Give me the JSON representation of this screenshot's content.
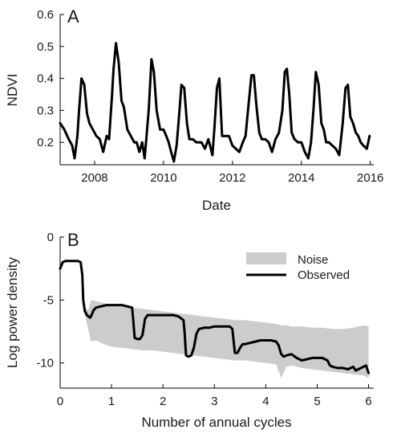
{
  "chart_data": [
    {
      "panel": "A",
      "type": "line",
      "xlabel": "Date",
      "ylabel": "NDVI",
      "xlim": [
        2007.0,
        2016.1
      ],
      "ylim": [
        0.13,
        0.6
      ],
      "xticks": [
        2008,
        2010,
        2012,
        2014,
        2016
      ],
      "yticks": [
        0.2,
        0.3,
        0.4,
        0.5,
        0.6
      ],
      "ytick_labels": [
        "0.2",
        "0.3",
        "0.4",
        "0.5",
        "0.6"
      ],
      "series": [
        {
          "color": "#000000",
          "x": [
            2007.0,
            2007.12,
            2007.25,
            2007.35,
            2007.42,
            2007.5,
            2007.55,
            2007.62,
            2007.7,
            2007.78,
            2007.85,
            2007.95,
            2008.05,
            2008.15,
            2008.25,
            2008.35,
            2008.42,
            2008.5,
            2008.55,
            2008.62,
            2008.7,
            2008.78,
            2008.85,
            2008.95,
            2009.05,
            2009.15,
            2009.22,
            2009.3,
            2009.38,
            2009.45,
            2009.5,
            2009.57,
            2009.65,
            2009.72,
            2009.8,
            2009.9,
            2010.0,
            2010.08,
            2010.15,
            2010.22,
            2010.3,
            2010.38,
            2010.45,
            2010.52,
            2010.6,
            2010.68,
            2010.75,
            2010.85,
            2010.95,
            2011.1,
            2011.2,
            2011.3,
            2011.35,
            2011.42,
            2011.48,
            2011.55,
            2011.62,
            2011.7,
            2011.78,
            2011.9,
            2012.0,
            2012.1,
            2012.2,
            2012.3,
            2012.38,
            2012.45,
            2012.55,
            2012.62,
            2012.7,
            2012.78,
            2012.85,
            2012.95,
            2013.05,
            2013.15,
            2013.25,
            2013.35,
            2013.45,
            2013.52,
            2013.58,
            2013.65,
            2013.72,
            2013.8,
            2013.9,
            2014.0,
            2014.1,
            2014.2,
            2014.28,
            2014.35,
            2014.42,
            2014.5,
            2014.58,
            2014.65,
            2014.72,
            2014.8,
            2014.9,
            2015.0,
            2015.1,
            2015.2,
            2015.28,
            2015.35,
            2015.42,
            2015.5,
            2015.58,
            2015.65,
            2015.72,
            2015.8,
            2015.9,
            2015.98
          ],
          "y": [
            0.26,
            0.24,
            0.21,
            0.19,
            0.15,
            0.22,
            0.3,
            0.4,
            0.38,
            0.29,
            0.26,
            0.24,
            0.22,
            0.21,
            0.17,
            0.22,
            0.21,
            0.34,
            0.43,
            0.51,
            0.45,
            0.33,
            0.31,
            0.24,
            0.22,
            0.2,
            0.2,
            0.17,
            0.2,
            0.15,
            0.21,
            0.3,
            0.46,
            0.42,
            0.3,
            0.24,
            0.24,
            0.22,
            0.2,
            0.17,
            0.14,
            0.19,
            0.28,
            0.38,
            0.37,
            0.26,
            0.21,
            0.21,
            0.2,
            0.2,
            0.18,
            0.21,
            0.19,
            0.16,
            0.25,
            0.37,
            0.4,
            0.22,
            0.22,
            0.22,
            0.19,
            0.18,
            0.17,
            0.2,
            0.22,
            0.3,
            0.41,
            0.41,
            0.31,
            0.23,
            0.21,
            0.21,
            0.2,
            0.17,
            0.21,
            0.23,
            0.3,
            0.42,
            0.43,
            0.35,
            0.23,
            0.21,
            0.2,
            0.2,
            0.17,
            0.15,
            0.2,
            0.3,
            0.42,
            0.38,
            0.26,
            0.24,
            0.2,
            0.2,
            0.19,
            0.18,
            0.16,
            0.26,
            0.37,
            0.38,
            0.28,
            0.26,
            0.23,
            0.22,
            0.2,
            0.19,
            0.18,
            0.22
          ]
        }
      ]
    },
    {
      "panel": "B",
      "type": "line",
      "xlabel": "Number of annual cycles",
      "ylabel": "Log power density",
      "xlim": [
        0,
        6.1
      ],
      "ylim": [
        -12,
        0
      ],
      "xticks": [
        0,
        1,
        2,
        3,
        4,
        5,
        6
      ],
      "yticks": [
        0,
        -5,
        -10
      ],
      "ytick_labels": [
        "0",
        "-5",
        "-10"
      ],
      "legend": {
        "placement": "top-right",
        "entries": [
          "Noise",
          "Observed"
        ]
      },
      "noise_band": {
        "name": "Noise",
        "color": "#cccccc",
        "x": [
          0.45,
          0.5,
          0.55,
          0.6,
          0.7,
          0.8,
          0.9,
          1.0,
          1.2,
          1.4,
          1.6,
          1.8,
          2.0,
          2.2,
          2.4,
          2.6,
          2.8,
          3.0,
          3.2,
          3.4,
          3.6,
          3.8,
          4.0,
          4.2,
          4.3,
          4.4,
          4.5,
          4.7,
          4.9,
          5.1,
          5.3,
          5.5,
          5.7,
          5.9,
          6.0
        ],
        "upper": [
          -5.6,
          -5.7,
          -5.8,
          -5.0,
          -5.1,
          -5.2,
          -5.3,
          -5.4,
          -5.5,
          -5.6,
          -5.7,
          -5.8,
          -5.9,
          -6.0,
          -6.1,
          -6.2,
          -6.3,
          -6.4,
          -6.5,
          -6.6,
          -6.6,
          -6.7,
          -6.8,
          -6.9,
          -7.0,
          -7.0,
          -7.1,
          -7.1,
          -7.2,
          -7.2,
          -7.3,
          -7.3,
          -7.2,
          -7.0,
          -7.1
        ],
        "lower": [
          -5.8,
          -6.5,
          -7.4,
          -8.3,
          -8.2,
          -8.4,
          -8.6,
          -8.7,
          -8.8,
          -8.9,
          -9.0,
          -9.0,
          -9.1,
          -9.2,
          -9.3,
          -9.4,
          -9.5,
          -9.6,
          -9.7,
          -9.8,
          -9.8,
          -9.9,
          -10.0,
          -10.1,
          -11.2,
          -10.3,
          -10.2,
          -10.4,
          -10.5,
          -10.6,
          -10.7,
          -10.8,
          -10.9,
          -11.0,
          -11.2
        ]
      },
      "series": [
        {
          "name": "Observed",
          "color": "#000000",
          "x": [
            0,
            0.05,
            0.1,
            0.2,
            0.3,
            0.35,
            0.4,
            0.43,
            0.45,
            0.48,
            0.5,
            0.52,
            0.55,
            0.58,
            0.6,
            0.65,
            0.7,
            0.8,
            0.9,
            1.0,
            1.1,
            1.2,
            1.3,
            1.4,
            1.42,
            1.45,
            1.5,
            1.55,
            1.6,
            1.65,
            1.7,
            1.8,
            1.9,
            2.0,
            2.1,
            2.2,
            2.3,
            2.4,
            2.42,
            2.45,
            2.5,
            2.55,
            2.6,
            2.65,
            2.7,
            2.8,
            2.9,
            3.0,
            3.1,
            3.2,
            3.3,
            3.35,
            3.38,
            3.4,
            3.45,
            3.5,
            3.55,
            3.6,
            3.7,
            3.8,
            3.9,
            4.0,
            4.1,
            4.2,
            4.25,
            4.3,
            4.35,
            4.4,
            4.5,
            4.6,
            4.7,
            4.8,
            4.9,
            5.0,
            5.1,
            5.2,
            5.25,
            5.3,
            5.4,
            5.5,
            5.6,
            5.7,
            5.75,
            5.8,
            5.9,
            5.95,
            6.0
          ],
          "y": [
            -2.5,
            -2.0,
            -1.9,
            -1.9,
            -1.9,
            -1.9,
            -2.0,
            -3.0,
            -5.0,
            -5.9,
            -6.0,
            -6.2,
            -6.3,
            -6.4,
            -6.3,
            -5.8,
            -5.6,
            -5.5,
            -5.4,
            -5.4,
            -5.4,
            -5.4,
            -5.5,
            -5.6,
            -6.5,
            -8.0,
            -8.1,
            -8.1,
            -7.8,
            -6.5,
            -6.2,
            -6.2,
            -6.2,
            -6.2,
            -6.2,
            -6.2,
            -6.3,
            -6.6,
            -7.5,
            -9.4,
            -9.5,
            -9.4,
            -8.8,
            -7.7,
            -7.3,
            -7.2,
            -7.2,
            -7.1,
            -7.1,
            -7.1,
            -7.1,
            -7.3,
            -8.5,
            -9.2,
            -9.2,
            -8.8,
            -8.5,
            -8.5,
            -8.4,
            -8.3,
            -8.2,
            -8.2,
            -8.2,
            -8.3,
            -8.6,
            -9.3,
            -9.5,
            -9.4,
            -9.3,
            -9.6,
            -9.8,
            -9.7,
            -9.6,
            -9.6,
            -9.6,
            -9.8,
            -10.2,
            -10.3,
            -10.4,
            -10.4,
            -10.5,
            -10.3,
            -10.6,
            -10.5,
            -10.3,
            -10.2,
            -10.8
          ]
        }
      ]
    }
  ]
}
